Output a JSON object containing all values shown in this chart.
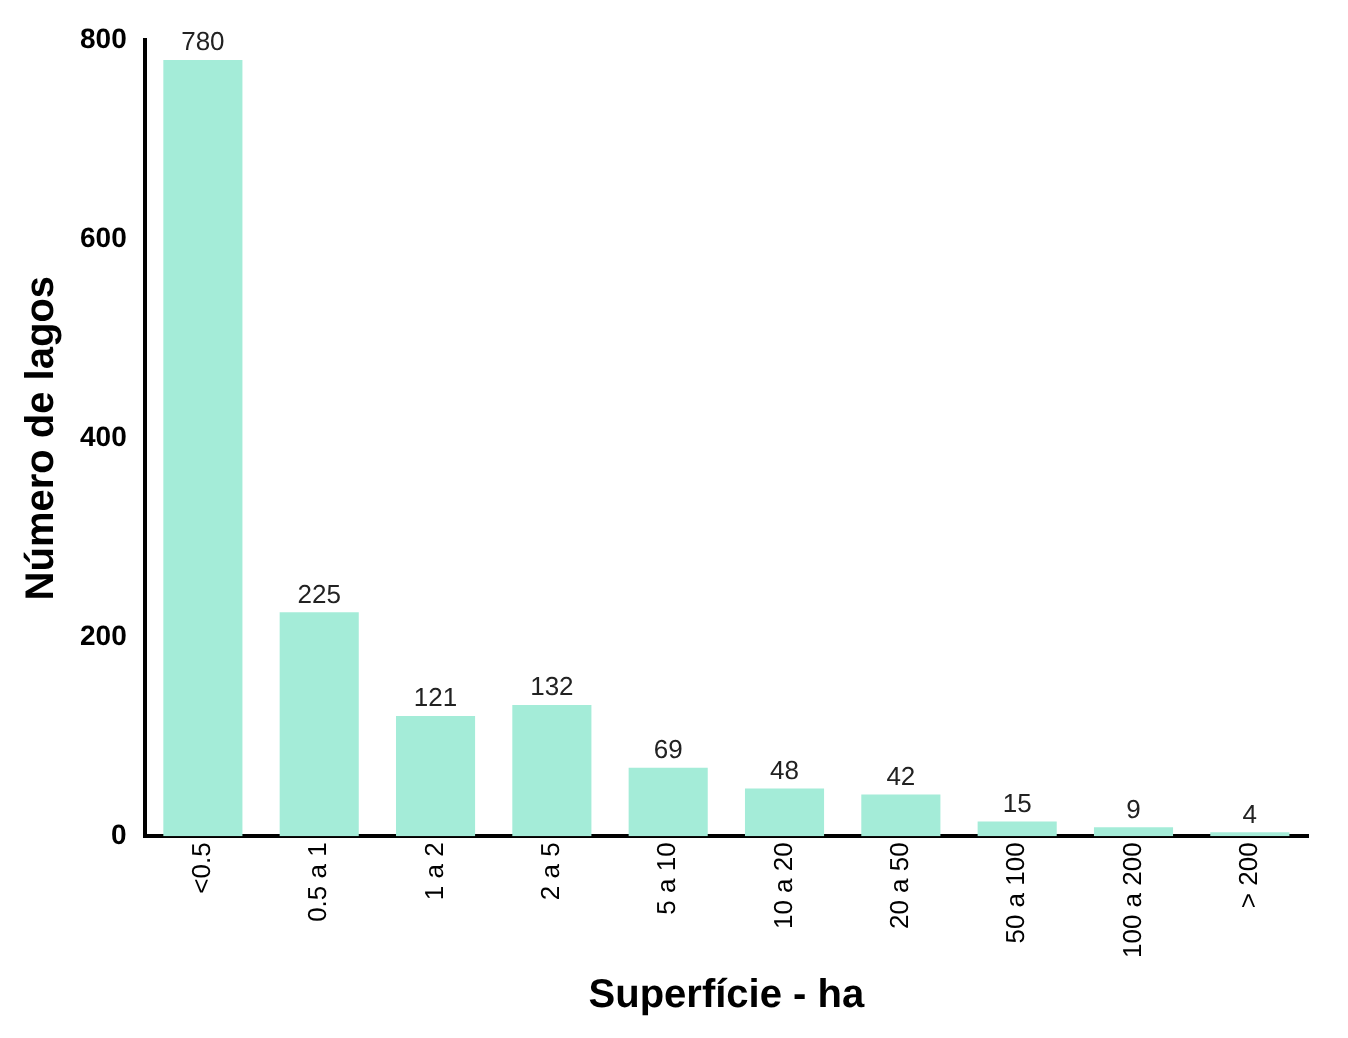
{
  "chart_data": {
    "type": "bar",
    "xlabel": "Superfície - ha",
    "ylabel": "Número de lagos",
    "categories": [
      "<0.5",
      "0.5 a 1",
      "1 a 2",
      "2 a 5",
      "5 a 10",
      "10 a 20",
      "20 a 50",
      "50 a 100",
      "100 a 200",
      "> 200"
    ],
    "values": [
      780,
      225,
      121,
      132,
      69,
      48,
      42,
      15,
      9,
      4
    ],
    "color": "#a4ecd8",
    "ylim": [
      0,
      800
    ],
    "yticks": [
      0,
      200,
      400,
      600,
      800
    ],
    "data_labels": true,
    "grid": false,
    "legend": false
  }
}
